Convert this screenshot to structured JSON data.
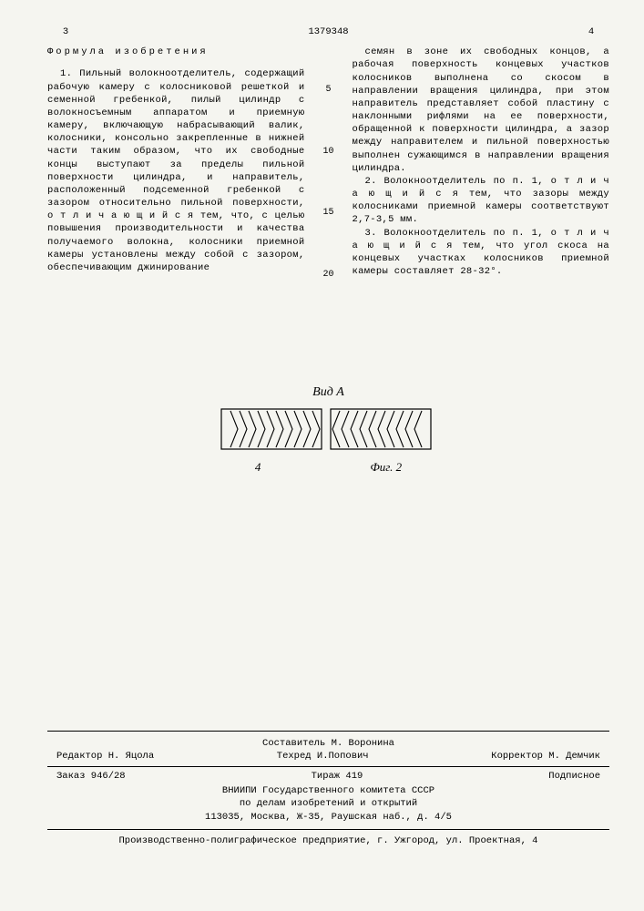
{
  "header": {
    "page_left": "3",
    "patent_number": "1379348",
    "page_right": "4"
  },
  "formula_title": "Формула изобретения",
  "line_markers": [
    "5",
    "10",
    "15",
    "20"
  ],
  "left_column": {
    "claim1": "1. Пильный волокноотделитель, содержащий рабочую камеру с колосниковой решеткой и семенной гребенкой, пилый цилиндр с волокносъемным аппаратом и приемную камеру, включающую набрасывающий валик, колосники, консольно закрепленные в нижней части таким образом, что их свободные концы выступают за пределы пильной поверхности цилиндра, и направитель, расположенный подсеменной гребенкой с зазором относительно пильной поверхности, о т л и ч а ю щ и й с я тем, что, с целью повышения производительности и качества получаемого волокна, колосники приемной камеры установлены между собой с зазором, обеспечивающим джинирование"
  },
  "right_column": {
    "cont1": "семян в зоне их свободных концов, а рабочая поверхность концевых участков колосников выполнена со скосом в направлении вращения цилиндра, при этом направитель представляет собой пластину с наклонными рифлями на ее поверхности, обращенной к поверхности цилиндра, а зазор между направителем и пильной поверхностью выполнен сужающимся в направлении вращения цилиндра.",
    "claim2": "2. Волокноотделитель по п. 1, о т л и ч а ю щ и й с я тем, что зазоры между колосниками приемной камеры соответствуют 2,7-3,5 мм.",
    "claim3": "3. Волокноотделитель по п. 1, о т л и ч а ю щ и й с я тем, что угол скоса на концевых участках колосников приемной камеры составляет 28-32°."
  },
  "figure": {
    "top_label": "Вид А",
    "ref_4": "4",
    "caption": "Фиг. 2",
    "stroke": "#000000",
    "fill": "none",
    "block_w": 110,
    "block_h": 44,
    "gap": 10
  },
  "footer": {
    "compiler": "Составитель М. Воронина",
    "editor": "Редактор Н. Яцола",
    "techred": "Техред И.Попович",
    "corrector": "Корректор М. Демчик",
    "order": "Заказ 946/28",
    "tirage": "Тираж 419",
    "subscription": "Подписное",
    "org1": "ВНИИПИ Государственного комитета СССР",
    "org2": "по делам изобретений и открытий",
    "address": "113035, Москва, Ж-35, Раушская наб., д. 4/5",
    "printer": "Производственно-полиграфическое предприятие, г. Ужгород, ул. Проектная, 4"
  }
}
